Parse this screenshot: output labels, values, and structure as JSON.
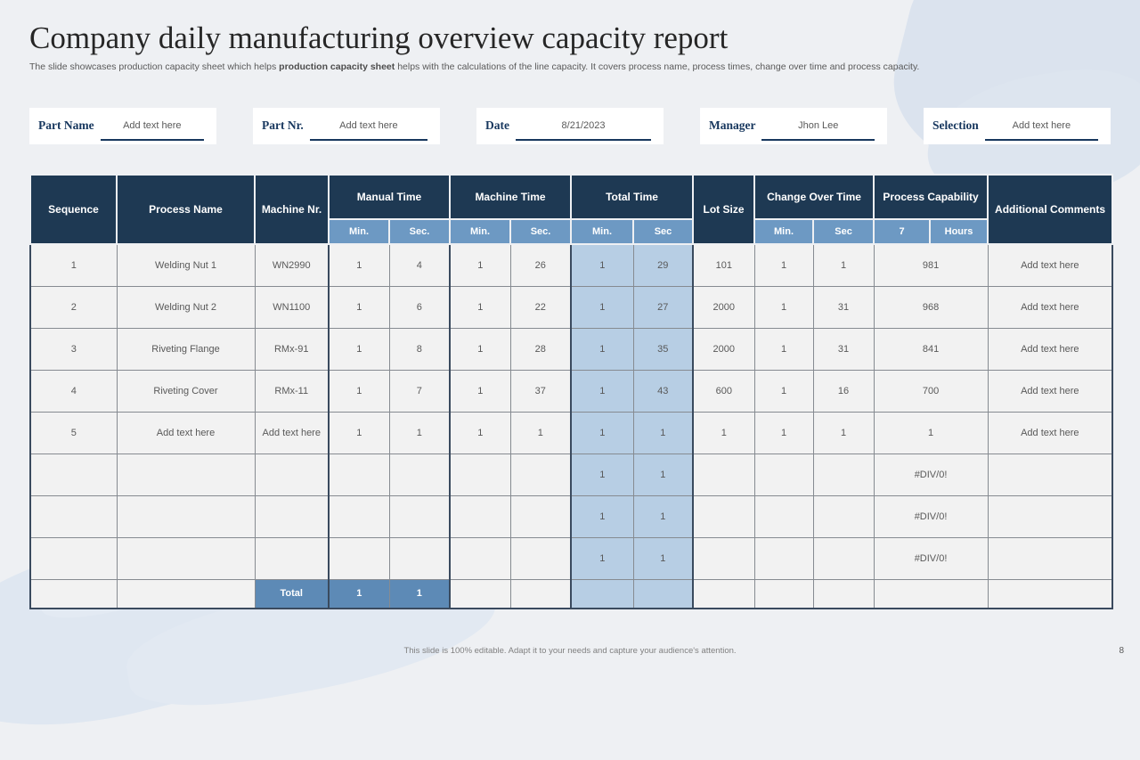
{
  "slide": {
    "title": "Company daily manufacturing overview capacity report",
    "subtitle_pre": "The slide showcases production capacity sheet which helps ",
    "subtitle_bold": "production capacity sheet",
    "subtitle_post": " helps with the calculations of the line capacity. It covers  process name, process times, change over time and process capacity.",
    "footer": "This slide is 100% editable. Adapt it to your needs and capture your audience's attention.",
    "page_number": "8"
  },
  "fields": [
    {
      "label": "Part Name",
      "value": "Add text here"
    },
    {
      "label": "Part Nr.",
      "value": "Add text here"
    },
    {
      "label": "Date",
      "value": "8/21/2023"
    },
    {
      "label": "Manager",
      "value": "Jhon Lee"
    },
    {
      "label": "Selection",
      "value": "Add text here"
    }
  ],
  "table": {
    "headers": {
      "sequence": "Sequence",
      "process_name": "Process Name",
      "machine_nr": "Machine Nr.",
      "manual_time": "Manual Time",
      "machine_time": "Machine Time",
      "total_time": "Total Time",
      "lot_size": "Lot Size",
      "change_over_time": "Change Over Time",
      "process_capability": "Process Capability",
      "additional_comments": "Additional Comments",
      "sub": {
        "manual_min": "Min.",
        "manual_sec": "Sec.",
        "machine_min": "Min.",
        "machine_sec": "Sec.",
        "total_min": "Min.",
        "total_sec": "Sec",
        "change_min": "Min.",
        "change_sec": "Sec",
        "pc_seven": "7",
        "pc_hours": "Hours"
      }
    },
    "col_names": [
      "sequence",
      "process-name",
      "machine-nr",
      "manual-time-min",
      "manual-time-sec",
      "machine-time-min",
      "machine-time-sec",
      "total-time-min",
      "total-time-sec",
      "lot-size",
      "change-over-min",
      "change-over-sec",
      "process-capability",
      "additional-comments"
    ],
    "rows": [
      [
        "1",
        "Welding Nut 1",
        "WN2990",
        "1",
        "4",
        "1",
        "26",
        "1",
        "29",
        "101",
        "1",
        "1",
        "981",
        "Add text here"
      ],
      [
        "2",
        "Welding Nut 2",
        "WN1100",
        "1",
        "6",
        "1",
        "22",
        "1",
        "27",
        "2000",
        "1",
        "31",
        "968",
        "Add text here"
      ],
      [
        "3",
        "Riveting Flange",
        "RMx-91",
        "1",
        "8",
        "1",
        "28",
        "1",
        "35",
        "2000",
        "1",
        "31",
        "841",
        "Add text here"
      ],
      [
        "4",
        "Riveting Cover",
        "RMx-11",
        "1",
        "7",
        "1",
        "37",
        "1",
        "43",
        "600",
        "1",
        "16",
        "700",
        "Add text here"
      ],
      [
        "5",
        "Add text here",
        "Add text here",
        "1",
        "1",
        "1",
        "1",
        "1",
        "1",
        "1",
        "1",
        "1",
        "1",
        "Add text here"
      ],
      [
        "",
        "",
        "",
        "",
        "",
        "",
        "",
        "1",
        "1",
        "",
        "",
        "",
        "#DIV/0!",
        ""
      ],
      [
        "",
        "",
        "",
        "",
        "",
        "",
        "",
        "1",
        "1",
        "",
        "",
        "",
        "#DIV/0!",
        ""
      ],
      [
        "",
        "",
        "",
        "",
        "",
        "",
        "",
        "1",
        "1",
        "",
        "",
        "",
        "#DIV/0!",
        ""
      ]
    ],
    "total_row": {
      "label": "Total",
      "manual_min": "1",
      "manual_sec": "1"
    }
  },
  "colors": {
    "slide_background": "#eef0f3",
    "header_navy": "#1e3953",
    "subheader_blue": "#6d99c3",
    "highlight_lightblue": "#b7cee4",
    "total_blue": "#5d8ab6",
    "field_label_navy": "#17375e",
    "body_text_gray": "#595959"
  }
}
